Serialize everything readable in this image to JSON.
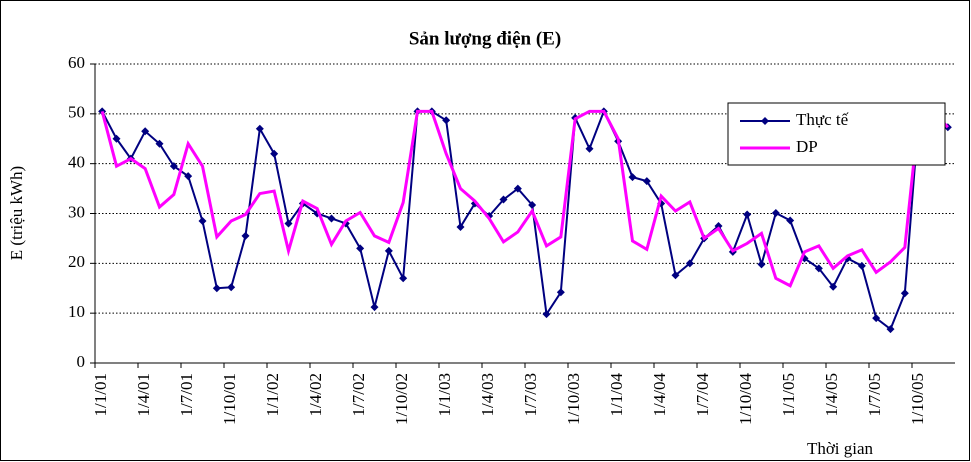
{
  "chart_data": {
    "type": "line",
    "title": "Sản lượng điện (E)",
    "y_label": "E (triệu kWh)",
    "x_label": "Thời gian",
    "categories": [
      "1/1/01",
      null,
      null,
      "1/4/01",
      null,
      null,
      "1/7/01",
      null,
      null,
      "1/10/01",
      null,
      null,
      "1/1/02",
      null,
      null,
      "1/4/02",
      null,
      null,
      "1/7/02",
      null,
      null,
      "1/10/02",
      null,
      null,
      "1/1/03",
      null,
      null,
      "1/4/03",
      null,
      null,
      "1/7/03",
      null,
      null,
      "1/10/03",
      null,
      null,
      "1/1/04",
      null,
      null,
      "1/4/04",
      null,
      null,
      "1/7/04",
      null,
      null,
      "1/10/04",
      null,
      null,
      "1/1/05",
      null,
      null,
      "1/4/05",
      null,
      null,
      "1/7/05",
      null,
      null,
      "1/10/05",
      null,
      null
    ],
    "series": [
      {
        "name": "Thực tế",
        "color": "#000080",
        "marker": "diamond",
        "values": [
          50.5,
          45,
          41,
          46.5,
          44,
          39.5,
          37.5,
          28.5,
          15,
          15.2,
          25.5,
          47,
          42,
          28,
          32,
          30,
          29,
          28,
          23,
          11.2,
          22.5,
          17,
          50.5,
          50.5,
          48.7,
          27.3,
          32,
          29.5,
          32.8,
          35,
          31.7,
          9.8,
          14.2,
          49.2,
          43,
          50.5,
          44.5,
          37.3,
          36.5,
          32,
          17.6,
          20,
          25,
          27.5,
          22.3,
          29.8,
          19.8,
          30.1,
          28.6,
          21,
          19,
          15.3,
          21,
          19.5,
          9,
          6.8,
          14,
          50.5,
          50.5,
          47.3
        ]
      },
      {
        "name": "DP",
        "color": "#ff00ff",
        "values": [
          50.5,
          39.5,
          41,
          39,
          31.3,
          33.8,
          44,
          39.5,
          25.3,
          28.5,
          29.8,
          34,
          34.5,
          22.5,
          32.5,
          31,
          23.8,
          28.5,
          30.2,
          25.5,
          24.2,
          32.2,
          50.5,
          50.5,
          42,
          35,
          32.5,
          29,
          24.3,
          26.3,
          30.5,
          23.5,
          25.3,
          49,
          50.5,
          50.5,
          45,
          24.5,
          22.8,
          33.5,
          30.5,
          32.3,
          25,
          27,
          22.5,
          24,
          26,
          17,
          15.5,
          22.3,
          23.5,
          19,
          21.5,
          22.7,
          18.2,
          20.3,
          23.2,
          50.5,
          50.5,
          47.3
        ]
      }
    ],
    "ylim": [
      0,
      60
    ],
    "yticks": [
      0,
      10,
      20,
      30,
      40,
      50,
      60
    ],
    "grid": true,
    "legend": "upper right"
  }
}
